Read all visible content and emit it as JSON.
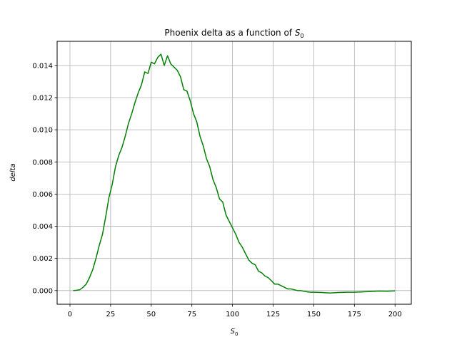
{
  "chart_data": {
    "type": "line",
    "title": "Phoenix delta as a function of",
    "title_math": "S",
    "title_math_sub": "0",
    "xlabel": "S",
    "xlabel_sub": "0",
    "ylabel": "delta",
    "xlim": [
      -7.9,
      210
    ],
    "ylim": [
      -0.00085,
      0.0155
    ],
    "x_ticks": [
      0,
      25,
      50,
      75,
      100,
      125,
      150,
      175,
      200
    ],
    "x_tick_labels": [
      "0",
      "25",
      "50",
      "75",
      "100",
      "125",
      "150",
      "175",
      "200"
    ],
    "y_ticks": [
      0.0,
      0.002,
      0.004,
      0.006,
      0.008,
      0.01,
      0.012,
      0.014
    ],
    "y_tick_labels": [
      "0.000",
      "0.002",
      "0.004",
      "0.006",
      "0.008",
      "0.010",
      "0.012",
      "0.014"
    ],
    "grid": true,
    "legend": "none",
    "series": [
      {
        "color": "#008000",
        "x": [
          2,
          4,
          6,
          8,
          10,
          12,
          14,
          16,
          18,
          20,
          22,
          24,
          26,
          28,
          30,
          32,
          34,
          36,
          38,
          40,
          42,
          44,
          46,
          48,
          50,
          52,
          54,
          56,
          58,
          60,
          62,
          64,
          66,
          68,
          70,
          72,
          74,
          76,
          78,
          80,
          82,
          84,
          86,
          88,
          90,
          92,
          94,
          96,
          98,
          100,
          102,
          104,
          106,
          108,
          110,
          112,
          114,
          116,
          118,
          120,
          122,
          124,
          126,
          128,
          130,
          132,
          134,
          136,
          138,
          140,
          142,
          144,
          146,
          148,
          150,
          155,
          160,
          165,
          170,
          175,
          180,
          185,
          190,
          195,
          200
        ],
        "values": [
          0.0,
          2e-05,
          5e-05,
          0.0002,
          0.0004,
          0.0008,
          0.0013,
          0.002,
          0.0028,
          0.0035,
          0.0046,
          0.0058,
          0.0066,
          0.0077,
          0.0084,
          0.0089,
          0.0096,
          0.0104,
          0.011,
          0.0117,
          0.0123,
          0.0128,
          0.0136,
          0.0135,
          0.0142,
          0.0141,
          0.0145,
          0.0147,
          0.014,
          0.0146,
          0.0141,
          0.0139,
          0.0137,
          0.0133,
          0.0125,
          0.0124,
          0.0118,
          0.011,
          0.0105,
          0.0096,
          0.009,
          0.0082,
          0.0077,
          0.0069,
          0.0064,
          0.0057,
          0.0055,
          0.0047,
          0.0043,
          0.0039,
          0.0035,
          0.003,
          0.0027,
          0.0023,
          0.0019,
          0.0017,
          0.0016,
          0.0012,
          0.0011,
          0.0009,
          0.0008,
          0.0006,
          0.0004,
          0.0004,
          0.0003,
          0.0002,
          0.0001,
          0.0001,
          5e-05,
          0.0,
          0.0,
          -5e-05,
          -8e-05,
          -0.0001,
          -0.0001,
          -0.00012,
          -0.00015,
          -0.00012,
          -0.0001,
          -0.0001,
          -8e-05,
          -6e-05,
          -3e-05,
          -4e-05,
          -2e-05
        ]
      }
    ]
  }
}
